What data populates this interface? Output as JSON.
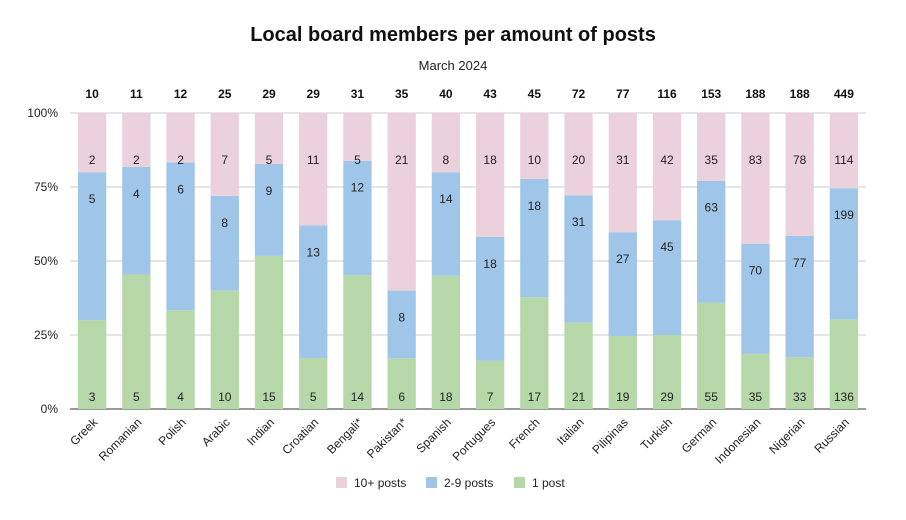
{
  "chart_data": {
    "type": "bar",
    "stacked": true,
    "normalized": true,
    "title": "Local board members per amount of posts",
    "subtitle": "March 2024",
    "categories": [
      "Greek",
      "Romanian",
      "Polish",
      "Arabic",
      "Indian",
      "Croatian",
      "Bengali*",
      "Pakistan*",
      "Spanish",
      "Portugues",
      "French",
      "Italian",
      "Pilipinas",
      "Turkish",
      "German",
      "Indonesian",
      "Nigerian",
      "Russian"
    ],
    "totals": [
      10,
      11,
      12,
      25,
      29,
      29,
      31,
      35,
      40,
      43,
      45,
      72,
      77,
      116,
      153,
      188,
      188,
      449
    ],
    "series": [
      {
        "name": "1 post",
        "color": "#b6d7a8",
        "values": [
          3,
          5,
          4,
          10,
          15,
          5,
          14,
          6,
          18,
          7,
          17,
          21,
          19,
          29,
          55,
          35,
          33,
          136
        ]
      },
      {
        "name": "2-9 posts",
        "color": "#9fc5e8",
        "values": [
          5,
          4,
          6,
          8,
          9,
          13,
          12,
          8,
          14,
          18,
          18,
          31,
          27,
          45,
          63,
          70,
          77,
          199
        ]
      },
      {
        "name": "10+ posts",
        "color": "#ead1dc",
        "values": [
          2,
          2,
          2,
          7,
          5,
          11,
          5,
          21,
          8,
          18,
          10,
          20,
          31,
          42,
          35,
          83,
          78,
          114
        ]
      }
    ],
    "legend_order": [
      "10+ posts",
      "2-9 posts",
      "1 post"
    ],
    "legend_position": "bottom",
    "y_ticks": [
      "0%",
      "25%",
      "50%",
      "75%",
      "100%"
    ],
    "ylim": [
      0,
      1
    ],
    "grid": true
  }
}
